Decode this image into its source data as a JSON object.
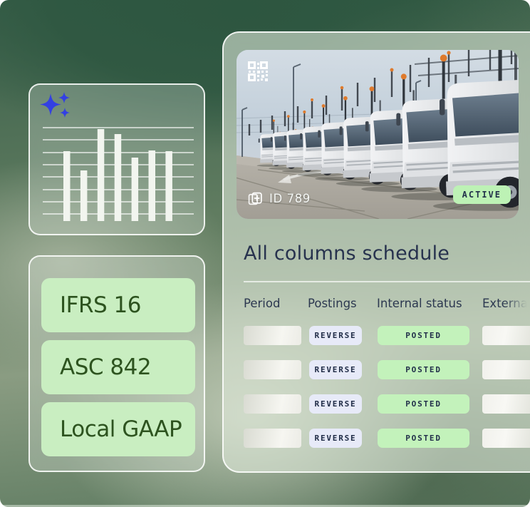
{
  "theme": {
    "accent_blue": "#3340e3",
    "pill_green": "#c9eec1",
    "badge_green": "#bdf2b5",
    "badge_lavender": "#e7eaf8",
    "text_navy": "#27324e",
    "text_dark_green": "#2d531f"
  },
  "ai_card": {
    "chart_data": {
      "type": "bar",
      "categories": [
        "",
        "",
        "",
        "",
        "",
        "",
        ""
      ],
      "values": [
        88,
        61,
        119,
        112,
        79,
        89,
        88
      ],
      "title": "",
      "xlabel": "",
      "ylabel": "",
      "ylim": [
        0,
        121
      ],
      "grid": "horizontal",
      "legend": "none"
    }
  },
  "standards_card": {
    "items": [
      {
        "label": "IFRS 16"
      },
      {
        "label": "ASC 842"
      },
      {
        "label": "Local GAAP"
      }
    ]
  },
  "asset_card": {
    "photo": {
      "id_label": "ID 789",
      "status_badge": "ACTIVE"
    },
    "section_title": "All columns schedule",
    "table": {
      "columns": [
        "Period",
        "Postings",
        "Internal status",
        "External"
      ],
      "rows": [
        {
          "postings": "REVERSE",
          "internal_status": "POSTED"
        },
        {
          "postings": "REVERSE",
          "internal_status": "POSTED"
        },
        {
          "postings": "REVERSE",
          "internal_status": "POSTED"
        },
        {
          "postings": "REVERSE",
          "internal_status": "POSTED"
        }
      ]
    }
  }
}
